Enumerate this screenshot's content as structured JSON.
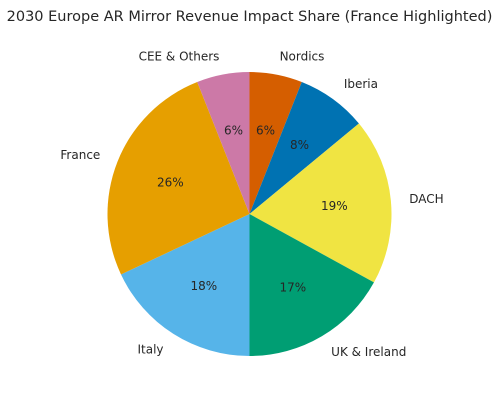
{
  "chart_data": {
    "type": "pie",
    "title": "2030 Europe AR Mirror Revenue Impact Share (France Highlighted)",
    "start_angle_deg": 90,
    "direction": "clockwise",
    "categories": [
      "Nordics",
      "Iberia",
      "DACH",
      "UK & Ireland",
      "Italy",
      "France",
      "CEE & Others"
    ],
    "values": [
      6,
      8,
      19,
      17,
      18,
      26,
      6
    ],
    "value_labels": [
      "6%",
      "8%",
      "19%",
      "17%",
      "18%",
      "26%",
      "6%"
    ],
    "colors": [
      "#d55e00",
      "#0072b2",
      "#f0e442",
      "#009e73",
      "#56b4e9",
      "#e69f00",
      "#cc79a7"
    ],
    "highlighted": "France",
    "legend": "none"
  }
}
